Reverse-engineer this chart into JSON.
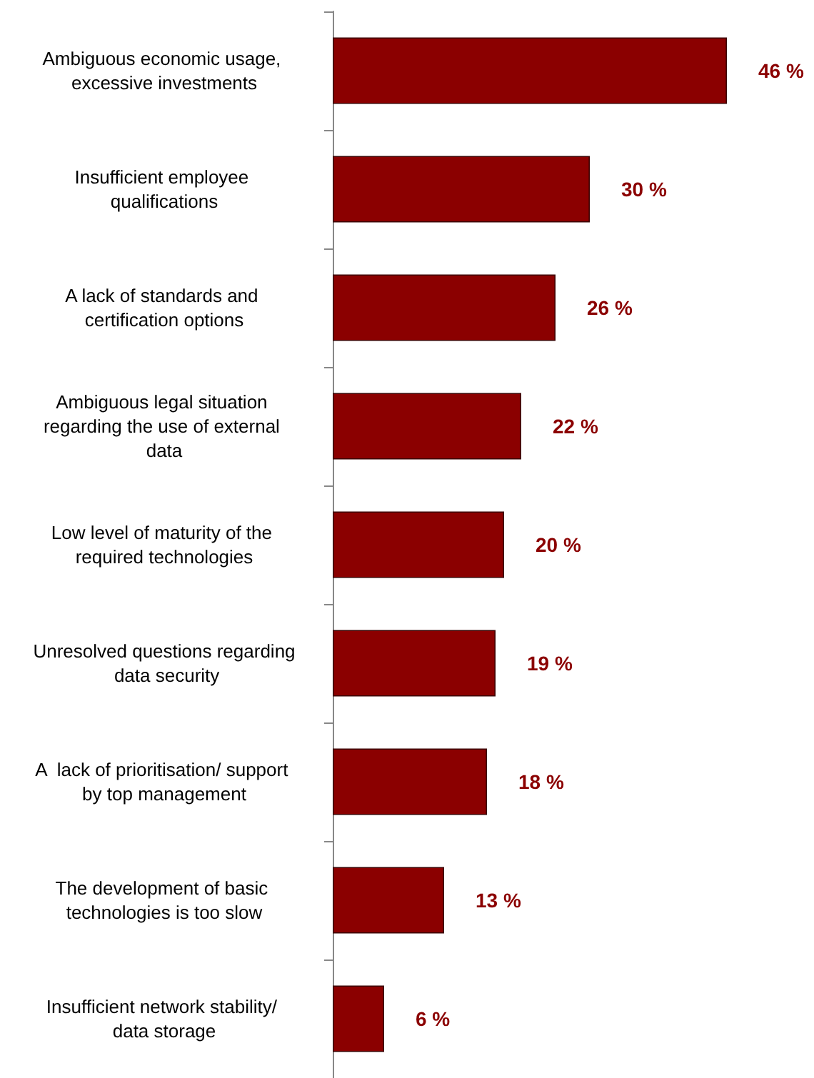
{
  "chart_data": {
    "type": "bar",
    "orientation": "horizontal",
    "categories": [
      "Ambiguous economic usage, excessive investments",
      "Insufficient employee qualifications",
      "A lack of standards and certification options",
      "Ambiguous legal situation regarding the use of external data",
      "Low level of maturity of the required technologies",
      "Unresolved questions regarding data security",
      "A  lack of prioritisation/ support by top management",
      "The development of basic technologies is too slow",
      "Insufficient network stability/ data storage"
    ],
    "values": [
      46,
      30,
      26,
      22,
      20,
      19,
      18,
      13,
      6
    ],
    "value_labels": [
      "46 %",
      "30 %",
      "26 %",
      "22 %",
      "20 %",
      "19 %",
      "18 %",
      "13 %",
      "6 %"
    ],
    "color": "#8b0000",
    "tick_labels": "y"
  }
}
